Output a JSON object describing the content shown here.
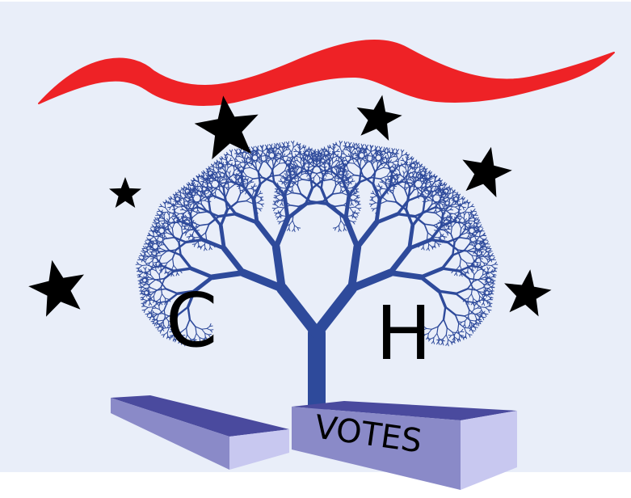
{
  "logo": {
    "letter_left": "C",
    "letter_right": "H",
    "box_label": "VOTES"
  },
  "colors": {
    "background": "#e9eef9",
    "tree": "#2e4a9b",
    "ribbon": "#ee2226",
    "star": "#000000",
    "box_top": "#4a4a9e",
    "box_front": "#8a8ac8",
    "box_side": "#c8c8f0"
  },
  "icons": [
    "fractal-tree-icon",
    "star-icon",
    "ribbon-icon",
    "ballot-box-icon"
  ]
}
